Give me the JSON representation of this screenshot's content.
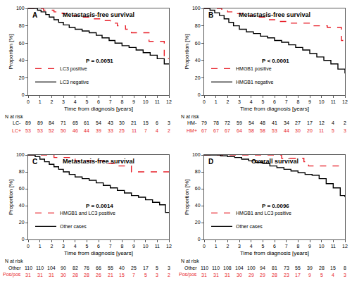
{
  "chart_data": [
    {
      "type": "step",
      "panel_label": "A",
      "title": "Metastasis-free survival",
      "x_label": "Time from diagnosis [years]",
      "y_label": "Proportion [%]",
      "xlim": [
        0,
        12
      ],
      "xticks": [
        0,
        1,
        2,
        3,
        4,
        5,
        6,
        7,
        8,
        9,
        10,
        11,
        12
      ],
      "ylim": [
        0,
        100
      ],
      "yticks": [
        0,
        20,
        40,
        60,
        80,
        100
      ],
      "grid": false,
      "legend": "lower left",
      "annotations": [
        "P = 0.0051"
      ],
      "series": [
        {
          "name": "LC3 positive",
          "color": "#e8202a",
          "line_style": "dash",
          "x": [
            0,
            1.3,
            2.2,
            2.9,
            3.5,
            4.5,
            5.4,
            6.2,
            7.0,
            7.6,
            8.3,
            8.8,
            10.3,
            11.6,
            12
          ],
          "values": [
            100,
            98,
            96,
            94,
            92,
            90,
            88,
            86,
            83,
            80,
            76,
            72,
            62,
            42,
            42
          ]
        },
        {
          "name": "LC3 negative",
          "color": "#000000",
          "line_style": "solid",
          "x": [
            0,
            0.8,
            1.1,
            1.5,
            1.8,
            2.2,
            2.6,
            3.0,
            3.5,
            4.0,
            4.6,
            5.2,
            5.8,
            6.3,
            6.9,
            7.4,
            8.0,
            8.6,
            9.2,
            9.8,
            10.4,
            11.0,
            11.6,
            12
          ],
          "values": [
            100,
            98,
            96,
            93,
            90,
            87,
            84,
            81,
            78,
            76,
            74,
            72,
            69,
            66,
            63,
            60,
            57,
            55,
            52,
            49,
            46,
            42,
            36,
            36
          ]
        }
      ],
      "at_risk": {
        "title": "N at risk",
        "x": [
          0,
          1,
          2,
          3,
          4,
          5,
          6,
          7,
          8,
          9,
          10,
          11,
          12
        ],
        "rows": [
          {
            "label": "LC-",
            "color": "#000000",
            "values": [
              89,
              89,
              84,
              71,
              65,
              61,
              54,
              43,
              30,
              21,
              15,
              6,
              3
            ]
          },
          {
            "label": "LC+",
            "color": "#e8202a",
            "values": [
              53,
              53,
              52,
              50,
              46,
              44,
              39,
              33,
              25,
              11,
              7,
              4,
              2
            ]
          }
        ]
      }
    },
    {
      "type": "step",
      "panel_label": "B",
      "title": "Metastasis-free survival",
      "x_label": "Time from diagnosis [years]",
      "y_label": "Proportion [%]",
      "xlim": [
        0,
        12
      ],
      "xticks": [
        0,
        1,
        2,
        3,
        4,
        5,
        6,
        7,
        8,
        9,
        10,
        11,
        12
      ],
      "ylim": [
        0,
        100
      ],
      "yticks": [
        0,
        20,
        40,
        60,
        80,
        100
      ],
      "grid": false,
      "legend": "lower left",
      "annotations": [
        "P < 0.0001"
      ],
      "series": [
        {
          "name": "HMGB1 positive",
          "color": "#e8202a",
          "line_style": "dash",
          "x": [
            0,
            1.5,
            2.0,
            2.5,
            3.5,
            4.5,
            5.5,
            6.5,
            7.0,
            9.3,
            10.5,
            11.7,
            12
          ],
          "values": [
            100,
            98,
            96,
            94,
            92,
            90,
            87,
            85,
            83,
            80,
            78,
            63,
            63
          ]
        },
        {
          "name": "HMGB1 negative",
          "color": "#000000",
          "line_style": "solid",
          "x": [
            0,
            0.5,
            0.9,
            1.3,
            1.7,
            2.1,
            2.5,
            3.0,
            3.6,
            4.2,
            4.8,
            5.4,
            6.0,
            6.6,
            7.2,
            7.8,
            8.4,
            9.0,
            9.6,
            10.2,
            10.8,
            11.4,
            12
          ],
          "values": [
            100,
            98,
            95,
            92,
            88,
            84,
            80,
            76,
            73,
            71,
            68,
            66,
            63,
            61,
            58,
            55,
            52,
            48,
            44,
            40,
            36,
            30,
            25
          ]
        }
      ],
      "at_risk": {
        "title": "N at risk",
        "x": [
          0,
          1,
          2,
          3,
          4,
          5,
          6,
          7,
          8,
          9,
          10,
          11,
          12
        ],
        "rows": [
          {
            "label": "HM-",
            "color": "#000000",
            "values": [
              79,
              78,
              72,
              59,
              54,
              48,
              41,
              34,
              27,
              17,
              12,
              4,
              2
            ]
          },
          {
            "label": "HM+",
            "color": "#e8202a",
            "values": [
              67,
              67,
              67,
              64,
              58,
              58,
              53,
              44,
              30,
              20,
              11,
              5,
              3
            ]
          }
        ]
      }
    },
    {
      "type": "step",
      "panel_label": "C",
      "title": "Metastasis-free survival",
      "x_label": "Time from diagnosis [years]",
      "y_label": "Proportion [%]",
      "xlim": [
        0,
        12
      ],
      "xticks": [
        0,
        1,
        2,
        3,
        4,
        5,
        6,
        7,
        8,
        9,
        10,
        11,
        12
      ],
      "ylim": [
        0,
        100
      ],
      "yticks": [
        0,
        20,
        40,
        60,
        80,
        100
      ],
      "grid": false,
      "legend": "lower left",
      "annotations": [
        "P = 0.0014"
      ],
      "series": [
        {
          "name": "HMGB1 and LC3 positive",
          "color": "#e8202a",
          "line_style": "dash",
          "x": [
            0,
            2.2,
            4.0,
            6.5,
            7.5,
            8.8,
            12
          ],
          "values": [
            100,
            97,
            93,
            90,
            87,
            80,
            80
          ]
        },
        {
          "name": "Other cases",
          "color": "#000000",
          "line_style": "solid",
          "x": [
            0,
            0.6,
            1.0,
            1.4,
            1.8,
            2.2,
            2.6,
            3.0,
            3.5,
            4.0,
            4.6,
            5.2,
            5.8,
            6.4,
            7.0,
            7.6,
            8.2,
            8.8,
            9.4,
            10.0,
            10.6,
            11.2,
            11.7,
            12
          ],
          "values": [
            100,
            98,
            95,
            92,
            89,
            86,
            83,
            80,
            77,
            74,
            72,
            70,
            67,
            64,
            61,
            58,
            55,
            52,
            50,
            47,
            44,
            41,
            32,
            32
          ]
        }
      ],
      "at_risk": {
        "title": "N at risk",
        "x": [
          0,
          1,
          2,
          3,
          4,
          5,
          6,
          7,
          8,
          9,
          10,
          11,
          12
        ],
        "rows": [
          {
            "label": "Other",
            "color": "#000000",
            "values": [
              110,
              110,
              104,
              90,
              82,
              76,
              66,
              55,
              40,
              25,
              17,
              5,
              3
            ]
          },
          {
            "label": "Pos/pos",
            "color": "#e8202a",
            "values": [
              31,
              31,
              31,
              30,
              28,
              28,
              26,
              21,
              15,
              7,
              5,
              3,
              2
            ]
          }
        ]
      }
    },
    {
      "type": "step",
      "panel_label": "D",
      "title": "Overall survival",
      "x_label": "Time from diagnosis [years]",
      "y_label": "Proportion [%]",
      "xlim": [
        0,
        12
      ],
      "xticks": [
        0,
        1,
        2,
        3,
        4,
        5,
        6,
        7,
        8,
        9,
        10,
        11,
        12
      ],
      "ylim": [
        0,
        100
      ],
      "yticks": [
        0,
        20,
        40,
        60,
        80,
        100
      ],
      "grid": false,
      "legend": "lower left",
      "annotations": [
        "P = 0.0096"
      ],
      "series": [
        {
          "name": "HMGB1 and LC3 positive",
          "color": "#e8202a",
          "line_style": "dash",
          "x": [
            0,
            6.6,
            8.5,
            8.9,
            12
          ],
          "values": [
            100,
            96,
            92,
            87,
            87
          ]
        },
        {
          "name": "Other cases",
          "color": "#000000",
          "line_style": "solid",
          "x": [
            0,
            1.4,
            2.0,
            2.6,
            3.2,
            3.8,
            4.4,
            5.0,
            5.6,
            6.2,
            6.8,
            7.4,
            8.0,
            8.6,
            9.2,
            9.8,
            10.4,
            11.0,
            11.6,
            12
          ],
          "values": [
            100,
            99,
            98,
            97,
            95,
            93,
            91,
            90,
            87,
            85,
            83,
            81,
            79,
            77,
            76,
            72,
            66,
            61,
            52,
            50
          ]
        }
      ],
      "at_risk": {
        "title": "N at risk",
        "x": [
          0,
          1,
          2,
          3,
          4,
          5,
          6,
          7,
          8,
          9,
          10,
          11,
          12
        ],
        "rows": [
          {
            "label": "Other",
            "color": "#000000",
            "values": [
              110,
              110,
              108,
              104,
              100,
              94,
              81,
              73,
              55,
              39,
              28,
              15,
              8
            ]
          },
          {
            "label": "Pos/pos",
            "color": "#e8202a",
            "values": [
              31,
              31,
              31,
              30,
              29,
              29,
              28,
              23,
              17,
              9,
              5,
              4,
              3
            ]
          }
        ]
      }
    }
  ]
}
